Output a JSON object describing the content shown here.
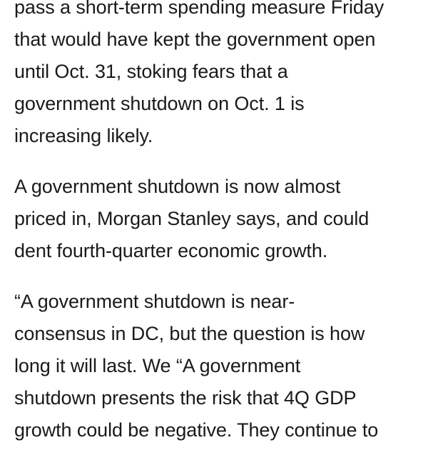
{
  "article": {
    "paragraphs": [
      {
        "lines": [
          "pass a short-term spending measure Friday",
          "that would have kept the government open",
          "until Oct. 31, stoking fears that a",
          "government shutdown on Oct. 1 is",
          "increasing likely."
        ]
      },
      {
        "lines": [
          "A government shutdown is now almost",
          "priced in, Morgan Stanley says, and could",
          "dent fourth-quarter economic growth."
        ]
      },
      {
        "lines": [
          "“A government shutdown is near-",
          "consensus in DC, but the question is how",
          "long it will last. We “A government",
          "shutdown presents the risk that 4Q GDP",
          "growth could be negative. They continue to"
        ]
      }
    ]
  }
}
